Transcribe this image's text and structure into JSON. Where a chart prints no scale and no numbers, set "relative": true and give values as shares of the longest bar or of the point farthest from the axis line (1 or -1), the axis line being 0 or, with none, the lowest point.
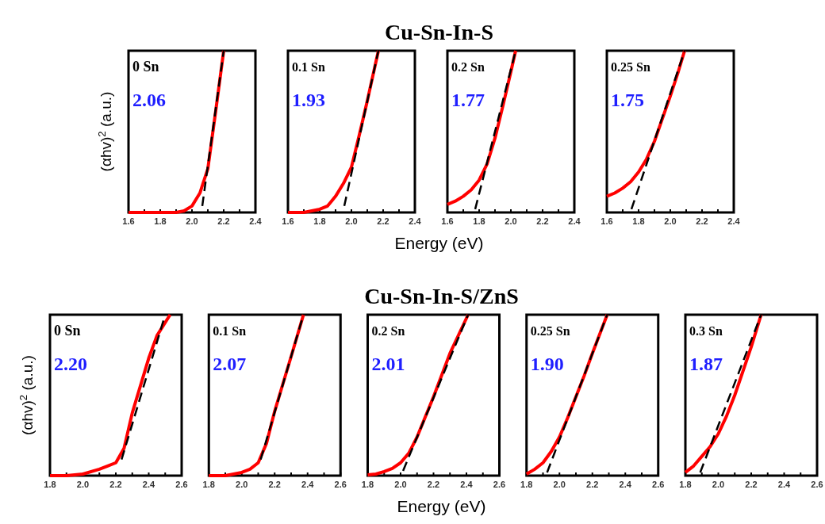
{
  "chart_data": [
    {
      "type": "line",
      "relative": true,
      "ylabel": "(αhv)$^{2}$ (a.u.)",
      "xlim": [
        1.6,
        2.4
      ],
      "xticks": [
        {
          "value": 1.6,
          "label": "1.6"
        },
        {
          "value": 1.7,
          "label": null
        },
        {
          "value": 1.8,
          "label": "1.8"
        },
        {
          "value": 1.9,
          "label": null
        },
        {
          "value": 2.0,
          "label": "2.0"
        },
        {
          "value": 2.1,
          "label": null
        },
        {
          "value": 2.2,
          "label": "2.2"
        },
        {
          "value": 2.3,
          "label": null
        },
        {
          "value": 2.4,
          "label": "2.4"
        }
      ],
      "annotations": [
        "0 Sn",
        "2.06"
      ],
      "series": [
        {
          "color": "#ff0000",
          "x": [
            1.6,
            1.9,
            1.95,
            2.0,
            2.05,
            2.1,
            2.15,
            2.2
          ],
          "values": [
            0,
            0,
            0.01,
            0.04,
            0.12,
            0.27,
            0.63,
            1
          ]
        },
        {
          "color": "#000000",
          "line_style": "dashed",
          "x": [
            2.065,
            2.2
          ],
          "values": [
            0.04,
            1
          ]
        }
      ]
    },
    {
      "type": "line",
      "relative": true,
      "title": "Cu-Sn-In-S",
      "xlim": [
        1.6,
        2.4
      ],
      "xticks": [
        {
          "value": 1.6,
          "label": "1.6"
        },
        {
          "value": 1.7,
          "label": null
        },
        {
          "value": 1.8,
          "label": "1.8"
        },
        {
          "value": 1.9,
          "label": null
        },
        {
          "value": 2.0,
          "label": "2.0"
        },
        {
          "value": 2.1,
          "label": null
        },
        {
          "value": 2.2,
          "label": "2.2"
        },
        {
          "value": 2.3,
          "label": null
        },
        {
          "value": 2.4,
          "label": "2.4"
        }
      ],
      "annotations": [
        "0.1 Sn",
        "1.93"
      ],
      "series": [
        {
          "color": "#ff0000",
          "x": [
            1.6,
            1.7,
            1.8,
            1.85,
            1.9,
            1.95,
            2.0,
            2.05,
            2.1,
            2.17
          ],
          "values": [
            0,
            0,
            0.02,
            0.04,
            0.1,
            0.18,
            0.28,
            0.48,
            0.69,
            1
          ]
        },
        {
          "color": "#000000",
          "line_style": "dashed",
          "x": [
            1.955,
            2.17
          ],
          "values": [
            0.04,
            1
          ]
        }
      ]
    },
    {
      "type": "line",
      "relative": true,
      "xlabel": "Energy (eV)",
      "xlim": [
        1.6,
        2.4
      ],
      "xticks": [
        {
          "value": 1.6,
          "label": "1.6"
        },
        {
          "value": 1.7,
          "label": null
        },
        {
          "value": 1.8,
          "label": "1.8"
        },
        {
          "value": 1.9,
          "label": null
        },
        {
          "value": 2.0,
          "label": "2.0"
        },
        {
          "value": 2.1,
          "label": null
        },
        {
          "value": 2.2,
          "label": "2.2"
        },
        {
          "value": 2.3,
          "label": null
        },
        {
          "value": 2.4,
          "label": "2.4"
        }
      ],
      "annotations": [
        "0.2 Sn",
        "1.77"
      ],
      "series": [
        {
          "color": "#ff0000",
          "x": [
            1.6,
            1.65,
            1.7,
            1.75,
            1.8,
            1.85,
            1.9,
            1.95,
            2.0,
            2.03
          ],
          "values": [
            0.05,
            0.07,
            0.1,
            0.14,
            0.2,
            0.3,
            0.46,
            0.66,
            0.87,
            1
          ]
        },
        {
          "color": "#000000",
          "line_style": "dashed",
          "x": [
            1.775,
            2.03
          ],
          "values": [
            0.02,
            1
          ]
        }
      ]
    },
    {
      "type": "line",
      "relative": true,
      "xlim": [
        1.6,
        2.4
      ],
      "xticks": [
        {
          "value": 1.6,
          "label": "1.6"
        },
        {
          "value": 1.7,
          "label": null
        },
        {
          "value": 1.8,
          "label": "1.8"
        },
        {
          "value": 1.9,
          "label": null
        },
        {
          "value": 2.0,
          "label": "2.0"
        },
        {
          "value": 2.1,
          "label": null
        },
        {
          "value": 2.2,
          "label": "2.2"
        },
        {
          "value": 2.3,
          "label": null
        },
        {
          "value": 2.4,
          "label": "2.4"
        }
      ],
      "annotations": [
        "0.25 Sn",
        "1.75"
      ],
      "series": [
        {
          "color": "#ff0000",
          "x": [
            1.6,
            1.65,
            1.7,
            1.75,
            1.8,
            1.85,
            1.9,
            1.95,
            2.0,
            2.05,
            2.09
          ],
          "values": [
            0.1,
            0.12,
            0.15,
            0.19,
            0.25,
            0.33,
            0.44,
            0.58,
            0.72,
            0.87,
            1
          ]
        },
        {
          "color": "#000000",
          "line_style": "dashed",
          "x": [
            1.755,
            2.09
          ],
          "values": [
            0.02,
            1
          ]
        }
      ]
    },
    {
      "type": "line",
      "relative": true,
      "ylabel": "(αhv)$^{2}$ (a.u.)",
      "xlim": [
        1.8,
        2.6
      ],
      "xticks": [
        {
          "value": 1.8,
          "label": "1.8"
        },
        {
          "value": 1.9,
          "label": null
        },
        {
          "value": 2.0,
          "label": "2.0"
        },
        {
          "value": 2.1,
          "label": null
        },
        {
          "value": 2.2,
          "label": "2.2"
        },
        {
          "value": 2.3,
          "label": null
        },
        {
          "value": 2.4,
          "label": "2.4"
        },
        {
          "value": 2.5,
          "label": null
        },
        {
          "value": 2.6,
          "label": "2.6"
        }
      ],
      "annotations": [
        "0 Sn",
        "2.20"
      ],
      "series": [
        {
          "color": "#ff0000",
          "x": [
            1.8,
            1.9,
            2.0,
            2.1,
            2.15,
            2.2,
            2.25,
            2.3,
            2.35,
            2.4,
            2.45,
            2.53
          ],
          "values": [
            0,
            0,
            0.01,
            0.04,
            0.06,
            0.08,
            0.17,
            0.39,
            0.56,
            0.73,
            0.87,
            1
          ]
        },
        {
          "color": "#000000",
          "line_style": "dashed",
          "x": [
            2.235,
            2.5
          ],
          "values": [
            0.1,
            1
          ]
        }
      ]
    },
    {
      "type": "line",
      "relative": true,
      "xlim": [
        1.8,
        2.6
      ],
      "xticks": [
        {
          "value": 1.8,
          "label": "1.8"
        },
        {
          "value": 1.9,
          "label": null
        },
        {
          "value": 2.0,
          "label": "2.0"
        },
        {
          "value": 2.1,
          "label": null
        },
        {
          "value": 2.2,
          "label": "2.2"
        },
        {
          "value": 2.3,
          "label": null
        },
        {
          "value": 2.4,
          "label": "2.4"
        },
        {
          "value": 2.5,
          "label": null
        },
        {
          "value": 2.6,
          "label": "2.6"
        }
      ],
      "annotations": [
        "0.1 Sn",
        "2.07"
      ],
      "series": [
        {
          "color": "#ff0000",
          "x": [
            1.8,
            1.9,
            2.0,
            2.05,
            2.1,
            2.15,
            2.2,
            2.25,
            2.3,
            2.375
          ],
          "values": [
            0,
            0,
            0.02,
            0.04,
            0.08,
            0.2,
            0.4,
            0.57,
            0.74,
            1
          ]
        },
        {
          "color": "#000000",
          "line_style": "dashed",
          "x": [
            2.115,
            2.375
          ],
          "values": [
            0.1,
            1
          ]
        }
      ]
    },
    {
      "type": "line",
      "relative": true,
      "title": "Cu-Sn-In-S/ZnS",
      "xlabel": "Energy (eV)",
      "xlim": [
        1.8,
        2.6
      ],
      "xticks": [
        {
          "value": 1.8,
          "label": "1.8"
        },
        {
          "value": 1.9,
          "label": null
        },
        {
          "value": 2.0,
          "label": "2.0"
        },
        {
          "value": 2.1,
          "label": null
        },
        {
          "value": 2.2,
          "label": "2.2"
        },
        {
          "value": 2.3,
          "label": null
        },
        {
          "value": 2.4,
          "label": "2.4"
        },
        {
          "value": 2.5,
          "label": null
        },
        {
          "value": 2.6,
          "label": "2.6"
        }
      ],
      "annotations": [
        "0.2 Sn",
        "2.01"
      ],
      "series": [
        {
          "color": "#ff0000",
          "x": [
            1.8,
            1.85,
            1.9,
            1.95,
            2.0,
            2.05,
            2.1,
            2.2,
            2.3,
            2.41
          ],
          "values": [
            0.005,
            0.01,
            0.025,
            0.045,
            0.08,
            0.14,
            0.24,
            0.49,
            0.76,
            1
          ]
        },
        {
          "color": "#000000",
          "line_style": "dashed",
          "x": [
            2.015,
            2.41
          ],
          "values": [
            0.03,
            1
          ]
        }
      ]
    },
    {
      "type": "line",
      "relative": true,
      "xlim": [
        1.8,
        2.6
      ],
      "xticks": [
        {
          "value": 1.8,
          "label": "1.8"
        },
        {
          "value": 1.9,
          "label": null
        },
        {
          "value": 2.0,
          "label": "2.0"
        },
        {
          "value": 2.1,
          "label": null
        },
        {
          "value": 2.2,
          "label": "2.2"
        },
        {
          "value": 2.3,
          "label": null
        },
        {
          "value": 2.4,
          "label": "2.4"
        },
        {
          "value": 2.5,
          "label": null
        },
        {
          "value": 2.6,
          "label": "2.6"
        }
      ],
      "annotations": [
        "0.25 Sn",
        "1.90"
      ],
      "series": [
        {
          "color": "#ff0000",
          "x": [
            1.8,
            1.85,
            1.9,
            1.95,
            2.0,
            2.05,
            2.1,
            2.15,
            2.2,
            2.29
          ],
          "values": [
            0.01,
            0.04,
            0.08,
            0.15,
            0.24,
            0.36,
            0.49,
            0.62,
            0.76,
            1
          ]
        },
        {
          "color": "#000000",
          "line_style": "dashed",
          "x": [
            1.925,
            2.29
          ],
          "values": [
            0.02,
            1
          ]
        }
      ]
    },
    {
      "type": "line",
      "relative": true,
      "xlim": [
        1.8,
        2.6
      ],
      "xticks": [
        {
          "value": 1.8,
          "label": "1.8"
        },
        {
          "value": 1.9,
          "label": null
        },
        {
          "value": 2.0,
          "label": "2.0"
        },
        {
          "value": 2.1,
          "label": null
        },
        {
          "value": 2.2,
          "label": "2.2"
        },
        {
          "value": 2.3,
          "label": null
        },
        {
          "value": 2.4,
          "label": "2.4"
        },
        {
          "value": 2.5,
          "label": null
        },
        {
          "value": 2.6,
          "label": "2.6"
        }
      ],
      "annotations": [
        "0.3 Sn",
        "1.87"
      ],
      "series": [
        {
          "color": "#ff0000",
          "x": [
            1.8,
            1.85,
            1.9,
            1.95,
            2.0,
            2.05,
            2.1,
            2.15,
            2.2,
            2.26
          ],
          "values": [
            0.02,
            0.06,
            0.12,
            0.18,
            0.26,
            0.37,
            0.5,
            0.65,
            0.8,
            1
          ]
        },
        {
          "color": "#000000",
          "line_style": "dashed",
          "x": [
            1.89,
            2.26
          ],
          "values": [
            0.02,
            1
          ]
        }
      ]
    }
  ]
}
